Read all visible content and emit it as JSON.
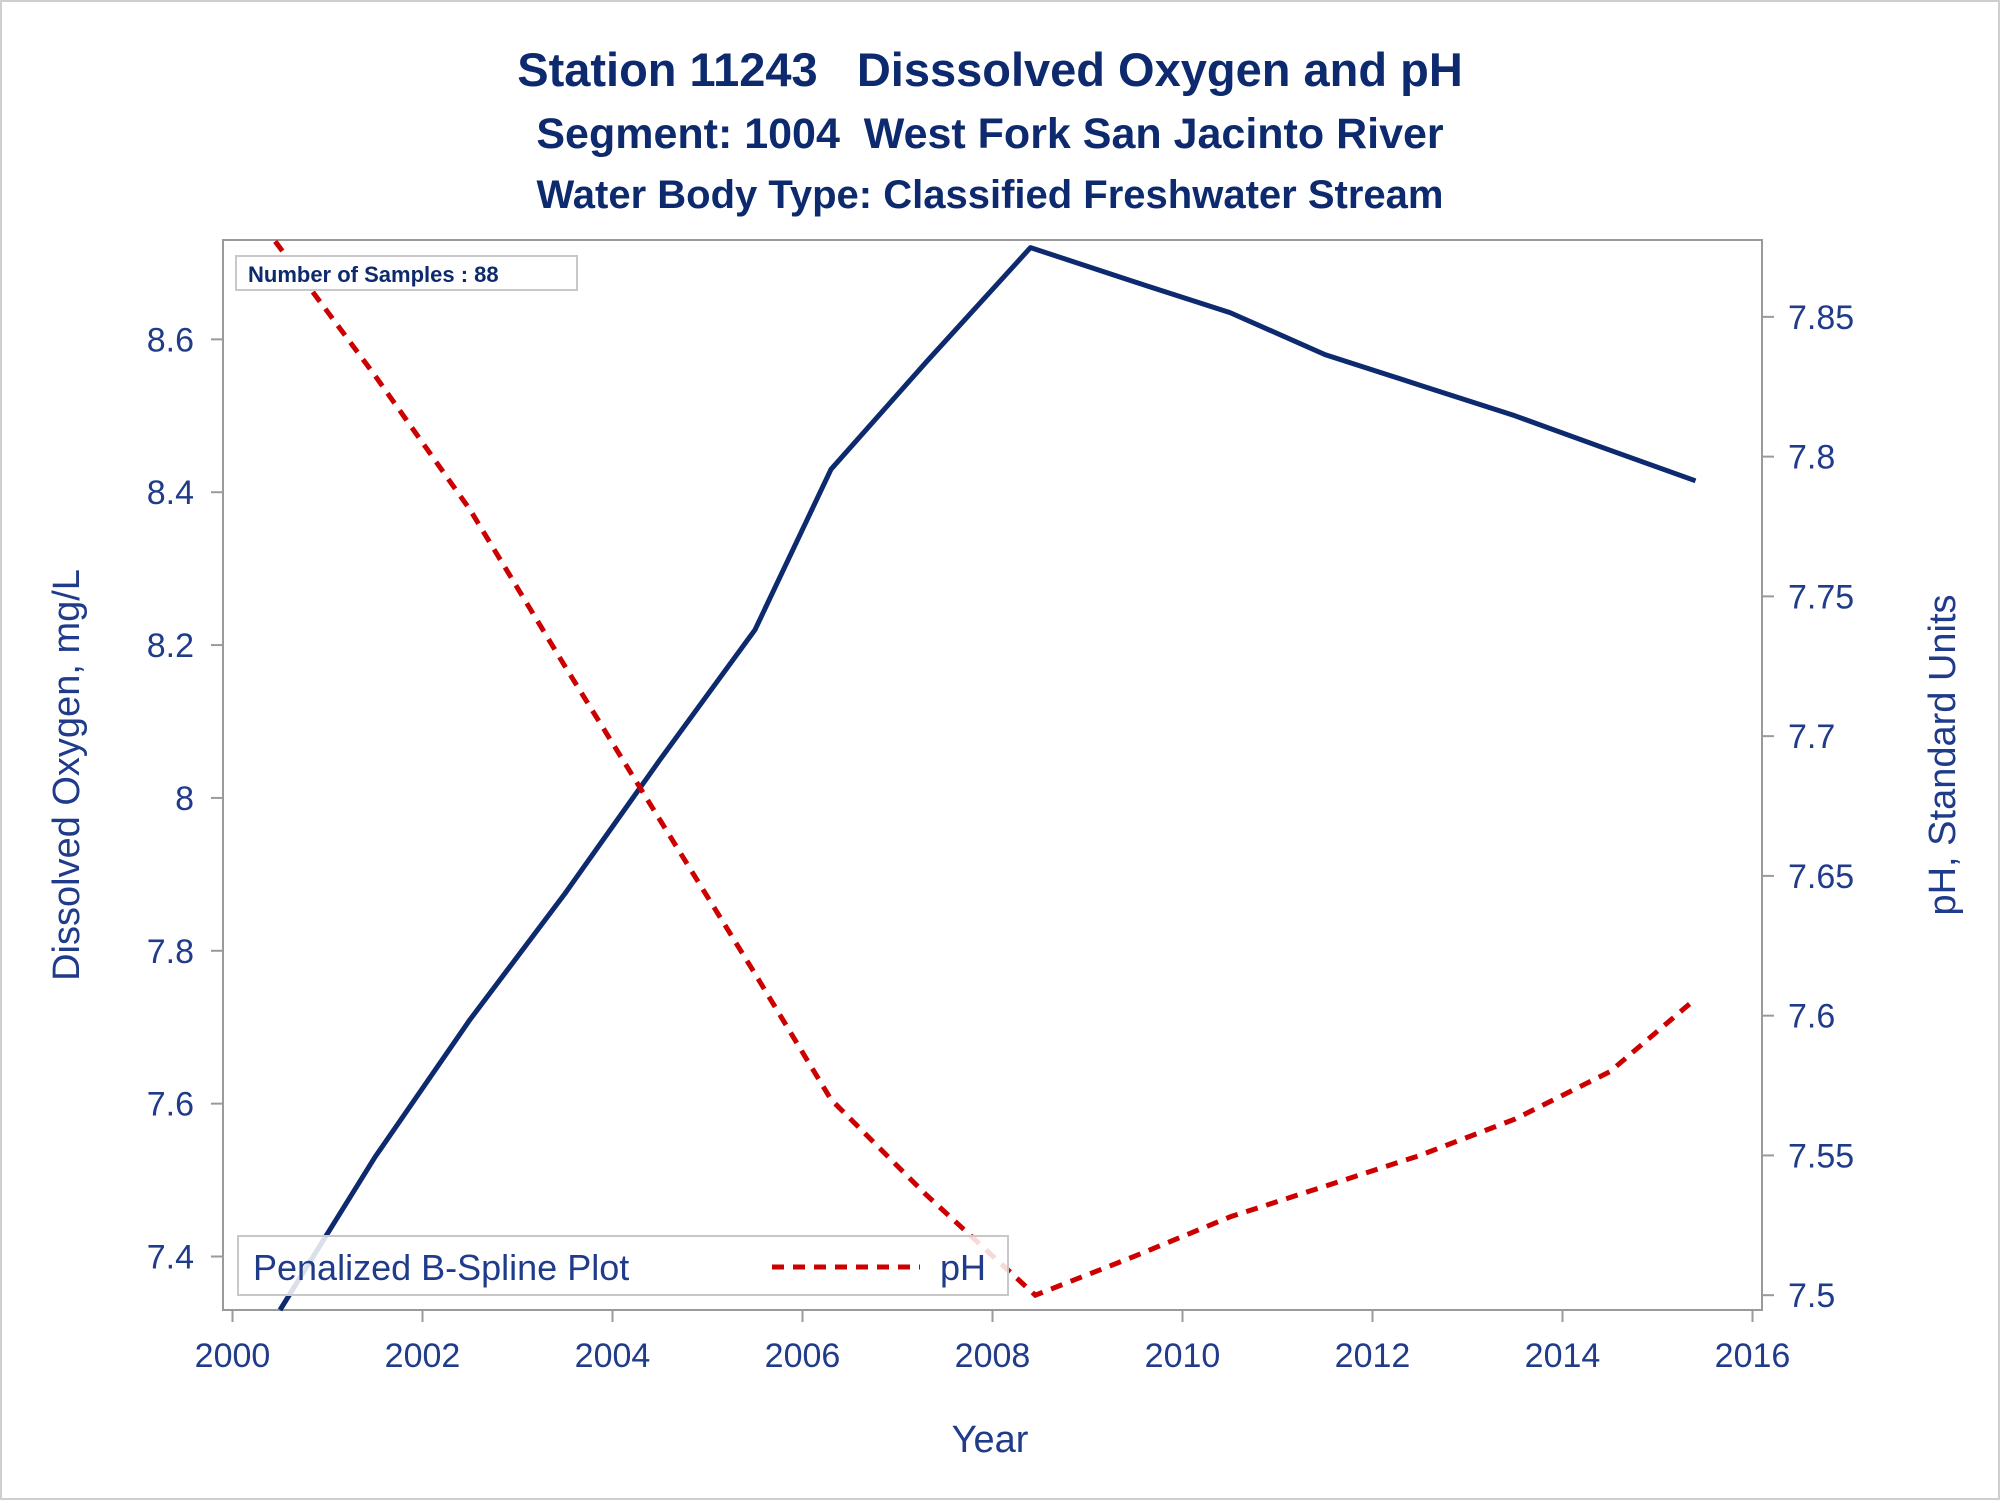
{
  "colors": {
    "title": "#0e2a6e",
    "text": "#1f3b8a",
    "do_series": "#0e2a6e",
    "ph_series": "#cc0000",
    "axis": "#9a9a9a",
    "frame": "#cfcfcf"
  },
  "chart_data": {
    "type": "line",
    "title": "Station 11243   Disssolved Oxygen and pH",
    "subtitle": "Segment: 1004  West Fork San Jacinto River",
    "subtitle2": "Water Body Type: Classified Freshwater Stream",
    "xlabel": "Year",
    "ylabel": "Dissolved Oxygen, mg/L",
    "y2label": "pH, Standard Units",
    "xlim": [
      1999.9,
      2016.1
    ],
    "ylim": [
      7.33,
      8.73
    ],
    "y2lim": [
      7.4947,
      7.8775
    ],
    "x_ticks": [
      2000,
      2002,
      2004,
      2006,
      2008,
      2010,
      2012,
      2014,
      2016
    ],
    "y_ticks": [
      7.4,
      7.6,
      7.8,
      8,
      8.2,
      8.4,
      8.6
    ],
    "y2_ticks": [
      7.5,
      7.55,
      7.6,
      7.65,
      7.7,
      7.75,
      7.8,
      7.85
    ],
    "annotation": "Number of Samples : 88",
    "legend": {
      "placement": "bottom-left",
      "title": "Penalized B-Spline Plot",
      "entries": [
        "pH"
      ]
    },
    "grid": false,
    "series": [
      {
        "name": "",
        "axis": "left",
        "style": "solid",
        "x": [
          2000.5,
          2001.5,
          2002.5,
          2003.5,
          2004.5,
          2005.5,
          2006.3,
          2007.3,
          2008.4,
          2009.5,
          2010.5,
          2011.5,
          2012.5,
          2013.5,
          2014.5,
          2015.4
        ],
        "values": [
          7.33,
          7.53,
          7.71,
          7.875,
          8.05,
          8.22,
          8.43,
          8.57,
          8.72,
          8.675,
          8.635,
          8.58,
          8.54,
          8.5,
          8.455,
          8.415
        ]
      },
      {
        "name": "pH",
        "axis": "right",
        "style": "dashed",
        "x": [
          2000.45,
          2001.5,
          2002.5,
          2003.5,
          2004.5,
          2005.5,
          2006.3,
          2007.3,
          2008.45,
          2009.5,
          2010.5,
          2011.5,
          2012.5,
          2013.5,
          2014.5,
          2015.4
        ],
        "values": [
          7.877,
          7.829,
          7.781,
          7.725,
          7.67,
          7.615,
          7.57,
          7.536,
          7.5,
          7.514,
          7.528,
          7.539,
          7.55,
          7.563,
          7.58,
          7.606
        ]
      }
    ]
  }
}
